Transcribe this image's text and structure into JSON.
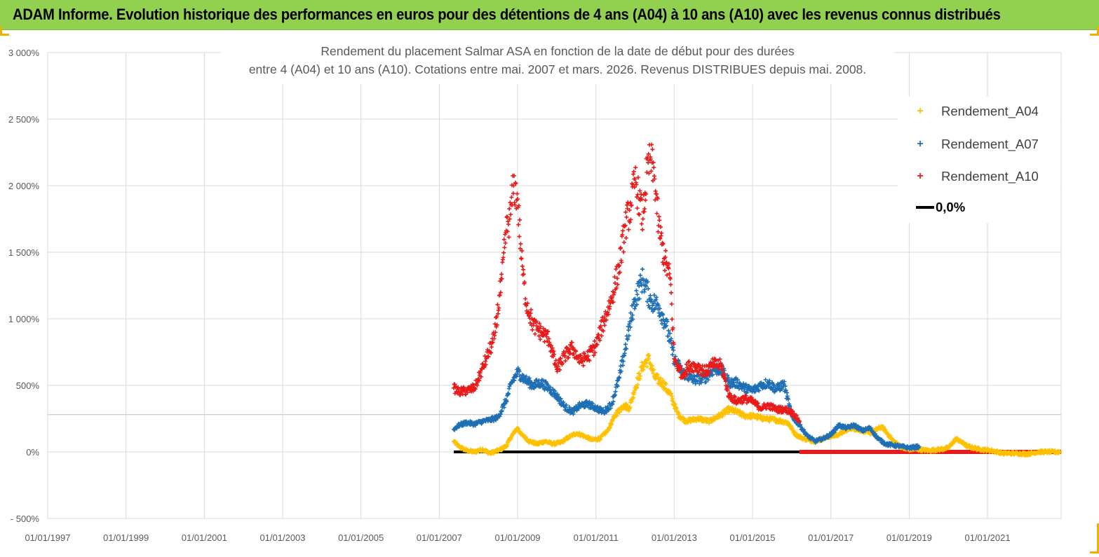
{
  "banner": {
    "title": "ADAM Informe. Evolution historique des performances en euros pour des détentions de 4 ans (A04) à 10 ans (A10) avec les revenus connus distribués"
  },
  "chart_data": {
    "type": "scatter",
    "title_line1": "Rendement du placement Salmar ASA en fonction de la date de début pour des durées",
    "title_line2": "entre 4 (A04) et 10 ans (A10).  Cotations entre mai. 2007 et mars. 2026. Revenus DISTRIBUES depuis mai. 2008.",
    "xlabel": "",
    "ylabel": "",
    "xlim": [
      1997.0,
      2022.88
    ],
    "ylim": [
      -500,
      3000
    ],
    "y_ticks": [
      -500,
      0,
      500,
      1000,
      1500,
      2000,
      2500,
      3000
    ],
    "y_tick_labels": [
      "- 500%",
      "0%",
      "500%",
      "1 000%",
      "1 500%",
      "2 000%",
      "2 500%",
      "3 000%"
    ],
    "x_ticks": [
      1997,
      1999,
      2001,
      2003,
      2005,
      2007,
      2009,
      2011,
      2013,
      2015,
      2017,
      2019,
      2021
    ],
    "x_tick_labels": [
      "01/01/1997",
      "01/01/1999",
      "01/01/2001",
      "01/01/2003",
      "01/01/2005",
      "01/01/2007",
      "01/01/2009",
      "01/01/2011",
      "01/01/2013",
      "01/01/2015",
      "01/01/2017",
      "01/01/2019",
      "01/01/2021"
    ],
    "grid": true,
    "extra_gridline_y": 280,
    "legend_position": "top-right",
    "series": [
      {
        "name": "Rendement_A04",
        "color": "#ffc000",
        "marker": "+",
        "x": [
          2007.37,
          2007.5,
          2007.7,
          2007.9,
          2008.1,
          2008.3,
          2008.5,
          2008.7,
          2008.85,
          2009.0,
          2009.1,
          2009.3,
          2009.5,
          2009.7,
          2009.9,
          2010.1,
          2010.3,
          2010.5,
          2010.7,
          2010.9,
          2011.1,
          2011.3,
          2011.5,
          2011.7,
          2011.85,
          2012.0,
          2012.2,
          2012.35,
          2012.5,
          2012.7,
          2012.9,
          2013.1,
          2013.3,
          2013.6,
          2013.9,
          2014.2,
          2014.4,
          2014.6,
          2014.8,
          2015.0,
          2015.3,
          2015.6,
          2015.9,
          2016.1,
          2016.3,
          2016.6,
          2016.9,
          2017.2,
          2017.5,
          2017.8,
          2018.0,
          2018.3,
          2018.6,
          2018.9,
          2019.2,
          2019.5,
          2019.8,
          2020.0,
          2020.2,
          2020.5,
          2020.8,
          2021.1,
          2021.4,
          2021.7,
          2022.0,
          2022.3,
          2022.6,
          2022.85
        ],
        "y": [
          80,
          40,
          10,
          0,
          20,
          -10,
          10,
          40,
          120,
          180,
          130,
          80,
          60,
          80,
          60,
          70,
          110,
          140,
          120,
          90,
          100,
          160,
          280,
          350,
          330,
          480,
          650,
          700,
          560,
          520,
          430,
          280,
          230,
          250,
          230,
          280,
          320,
          300,
          270,
          270,
          250,
          240,
          220,
          130,
          100,
          80,
          110,
          130,
          180,
          160,
          140,
          190,
          80,
          20,
          20,
          10,
          20,
          30,
          100,
          40,
          20,
          10,
          -10,
          -10,
          -15,
          0,
          0,
          0
        ]
      },
      {
        "name": "Rendement_A07",
        "color": "#1f6fb5",
        "marker": "+",
        "x": [
          2007.37,
          2007.5,
          2007.7,
          2007.9,
          2008.1,
          2008.3,
          2008.5,
          2008.7,
          2008.85,
          2009.0,
          2009.2,
          2009.4,
          2009.6,
          2009.8,
          2010.0,
          2010.2,
          2010.4,
          2010.6,
          2010.8,
          2011.0,
          2011.2,
          2011.4,
          2011.6,
          2011.8,
          2012.0,
          2012.2,
          2012.4,
          2012.6,
          2012.8,
          2013.0,
          2013.2,
          2013.5,
          2013.8,
          2014.0,
          2014.2,
          2014.4,
          2014.6,
          2014.8,
          2015.0,
          2015.2,
          2015.4,
          2015.6,
          2015.8,
          2016.0,
          2016.2,
          2016.4,
          2016.6,
          2016.8,
          2017.0,
          2017.2,
          2017.4,
          2017.6,
          2017.8,
          2018.0,
          2018.2,
          2018.4,
          2018.6,
          2018.8,
          2019.0,
          2019.25
        ],
        "y": [
          170,
          200,
          220,
          210,
          230,
          240,
          260,
          380,
          520,
          600,
          540,
          500,
          520,
          480,
          420,
          340,
          300,
          350,
          360,
          330,
          300,
          360,
          560,
          850,
          1150,
          1300,
          1130,
          1100,
          950,
          700,
          600,
          540,
          560,
          620,
          620,
          520,
          520,
          480,
          460,
          500,
          520,
          470,
          510,
          270,
          200,
          120,
          80,
          100,
          130,
          200,
          180,
          200,
          160,
          180,
          100,
          60,
          50,
          40,
          30,
          40
        ]
      },
      {
        "name": "Rendement_A10",
        "color": "#e81b1b",
        "marker": "+",
        "x": [
          2007.37,
          2007.5,
          2007.7,
          2007.9,
          2008.0,
          2008.2,
          2008.4,
          2008.6,
          2008.7,
          2008.8,
          2008.9,
          2009.0,
          2009.1,
          2009.2,
          2009.4,
          2009.6,
          2009.8,
          2010.0,
          2010.2,
          2010.4,
          2010.6,
          2010.8,
          2011.0,
          2011.2,
          2011.4,
          2011.6,
          2011.75,
          2011.9,
          2012.0,
          2012.1,
          2012.2,
          2012.3,
          2012.4,
          2012.5,
          2012.6,
          2012.75,
          2012.9,
          2013.0,
          2013.2,
          2013.4,
          2013.6,
          2013.8,
          2014.0,
          2014.2,
          2014.4,
          2014.6,
          2014.8,
          2015.0,
          2015.2,
          2015.4,
          2015.6,
          2015.8,
          2016.0,
          2016.2
        ],
        "y": [
          480,
          450,
          460,
          480,
          550,
          700,
          850,
          1300,
          1650,
          1750,
          2000,
          1900,
          1450,
          1150,
          950,
          900,
          850,
          620,
          720,
          780,
          680,
          720,
          800,
          980,
          1150,
          1400,
          1700,
          1850,
          2050,
          1900,
          1750,
          2100,
          2200,
          2050,
          1700,
          1450,
          1300,
          700,
          580,
          650,
          640,
          600,
          660,
          650,
          420,
          380,
          400,
          380,
          330,
          350,
          320,
          320,
          300,
          230
        ]
      }
    ],
    "series_lines": [
      {
        "name": "0,0%",
        "color": "#000000",
        "x": [
          2007.37,
          2016.2
        ],
        "y": [
          0,
          0
        ]
      },
      {
        "name": "Rendement_A10 (zero segment)",
        "color": "#e81b1b",
        "x": [
          2016.2,
          2022.88
        ],
        "y": [
          0,
          0
        ]
      }
    ]
  },
  "legend": {
    "items": [
      {
        "label": "Rendement_A04",
        "color": "#ffc000",
        "marker": "+"
      },
      {
        "label": "Rendement_A07",
        "color": "#1f6fb5",
        "marker": "+"
      },
      {
        "label": "Rendement_A10",
        "color": "#e81b1b",
        "marker": "+"
      },
      {
        "label": "0,0%",
        "color": "#000000",
        "marker": "line"
      }
    ]
  }
}
